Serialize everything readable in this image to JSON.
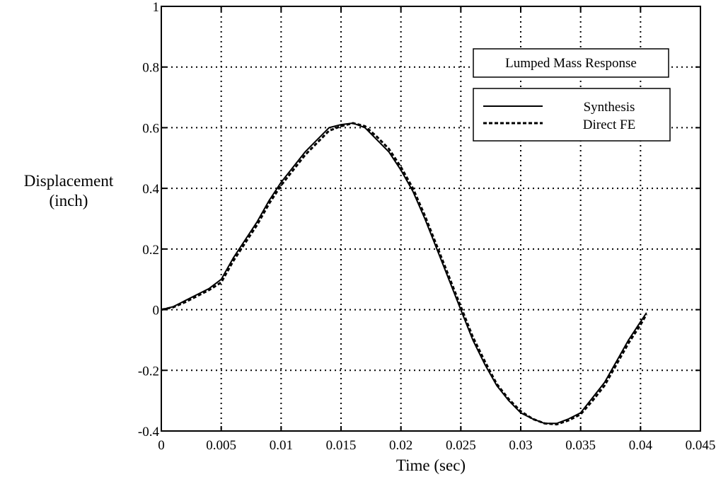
{
  "chart_data": {
    "type": "line",
    "title": "Lumped Mass Response",
    "xlabel": "Time (sec)",
    "ylabel_lines": [
      "Displacement",
      "(inch)"
    ],
    "xlim": [
      0,
      0.045
    ],
    "ylim": [
      -0.4,
      1
    ],
    "xticks": [
      0,
      0.005,
      0.01,
      0.015,
      0.02,
      0.025,
      0.03,
      0.035,
      0.04,
      0.045
    ],
    "xtick_labels": [
      "0",
      "0.005",
      "0.01",
      "0.015",
      "0.02",
      "0.025",
      "0.03",
      "0.035",
      "0.04",
      "0.045"
    ],
    "yticks": [
      -0.4,
      -0.2,
      0,
      0.2,
      0.4,
      0.6,
      0.8,
      1
    ],
    "ytick_labels": [
      "-0.4",
      "-0.2",
      "0",
      "0.2",
      "0.4",
      "0.6",
      "0.8",
      "1"
    ],
    "grid": true,
    "legend_position": "top-right",
    "series": [
      {
        "name": "Synthesis",
        "style": "solid",
        "color": "#000000",
        "x": [
          0,
          0.001,
          0.002,
          0.003,
          0.004,
          0.005,
          0.006,
          0.007,
          0.008,
          0.009,
          0.01,
          0.011,
          0.012,
          0.013,
          0.014,
          0.015,
          0.016,
          0.017,
          0.018,
          0.019,
          0.02,
          0.021,
          0.022,
          0.023,
          0.024,
          0.025,
          0.026,
          0.027,
          0.028,
          0.029,
          0.03,
          0.031,
          0.032,
          0.033,
          0.034,
          0.035,
          0.036,
          0.037,
          0.038,
          0.039,
          0.04,
          0.0405
        ],
        "y": [
          0,
          0.01,
          0.03,
          0.05,
          0.07,
          0.1,
          0.17,
          0.23,
          0.29,
          0.36,
          0.42,
          0.47,
          0.52,
          0.56,
          0.6,
          0.61,
          0.615,
          0.6,
          0.56,
          0.52,
          0.46,
          0.39,
          0.3,
          0.2,
          0.1,
          0.0,
          -0.1,
          -0.18,
          -0.25,
          -0.3,
          -0.34,
          -0.36,
          -0.375,
          -0.375,
          -0.36,
          -0.34,
          -0.29,
          -0.24,
          -0.17,
          -0.1,
          -0.04,
          -0.01
        ]
      },
      {
        "name": "Direct FE",
        "style": "dashed",
        "color": "#000000",
        "x": [
          0,
          0.001,
          0.002,
          0.003,
          0.004,
          0.005,
          0.006,
          0.007,
          0.008,
          0.009,
          0.01,
          0.011,
          0.012,
          0.013,
          0.014,
          0.015,
          0.016,
          0.017,
          0.018,
          0.019,
          0.02,
          0.021,
          0.022,
          0.023,
          0.024,
          0.025,
          0.026,
          0.027,
          0.028,
          0.029,
          0.03,
          0.031,
          0.032,
          0.033,
          0.034,
          0.035,
          0.036,
          0.037,
          0.038,
          0.039,
          0.04,
          0.0405
        ],
        "y": [
          0,
          0.008,
          0.025,
          0.045,
          0.065,
          0.09,
          0.16,
          0.22,
          0.28,
          0.35,
          0.41,
          0.46,
          0.51,
          0.55,
          0.59,
          0.605,
          0.615,
          0.605,
          0.57,
          0.53,
          0.47,
          0.4,
          0.31,
          0.21,
          0.11,
          0.01,
          -0.09,
          -0.17,
          -0.245,
          -0.295,
          -0.335,
          -0.36,
          -0.375,
          -0.378,
          -0.365,
          -0.345,
          -0.3,
          -0.25,
          -0.18,
          -0.11,
          -0.05,
          -0.015
        ]
      }
    ]
  }
}
